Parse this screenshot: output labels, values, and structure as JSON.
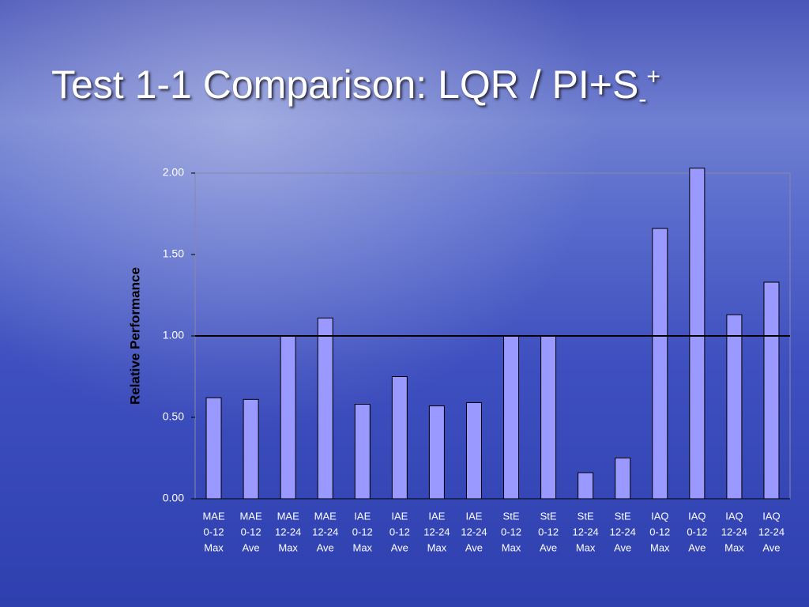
{
  "chart_data": {
    "type": "bar",
    "title": "Test 1-1 Comparison: LQR / PI+S",
    "title_subscript": "-",
    "title_superscript": "+",
    "y_label": "Relative Performance",
    "categories": [
      [
        "MAE",
        "0-12",
        "Max"
      ],
      [
        "MAE",
        "0-12",
        "Ave"
      ],
      [
        "MAE",
        "12-24",
        "Max"
      ],
      [
        "MAE",
        "12-24",
        "Ave"
      ],
      [
        "IAE",
        "0-12",
        "Max"
      ],
      [
        "IAE",
        "0-12",
        "Ave"
      ],
      [
        "IAE",
        "12-24",
        "Max"
      ],
      [
        "IAE",
        "12-24",
        "Ave"
      ],
      [
        "StE",
        "0-12",
        "Max"
      ],
      [
        "StE",
        "0-12",
        "Ave"
      ],
      [
        "StE",
        "12-24",
        "Max"
      ],
      [
        "StE",
        "12-24",
        "Ave"
      ],
      [
        "IAQ",
        "0-12",
        "Max"
      ],
      [
        "IAQ",
        "0-12",
        "Ave"
      ],
      [
        "IAQ",
        "12-24",
        "Max"
      ],
      [
        "IAQ",
        "12-24",
        "Ave"
      ]
    ],
    "values": [
      0.62,
      0.61,
      1.0,
      1.11,
      0.58,
      0.75,
      0.57,
      0.59,
      1.0,
      1.0,
      0.16,
      0.25,
      1.66,
      2.03,
      1.13,
      1.33
    ],
    "color": "#9999ff",
    "ylim": [
      0,
      2
    ],
    "yticks": [
      {
        "value": 0,
        "label": "0.00"
      },
      {
        "value": 0.5,
        "label": "0.50"
      },
      {
        "value": 1,
        "label": "1.00"
      },
      {
        "value": 1.5,
        "label": "1.50"
      },
      {
        "value": 2,
        "label": "2.00"
      }
    ],
    "reference_line": 1
  }
}
